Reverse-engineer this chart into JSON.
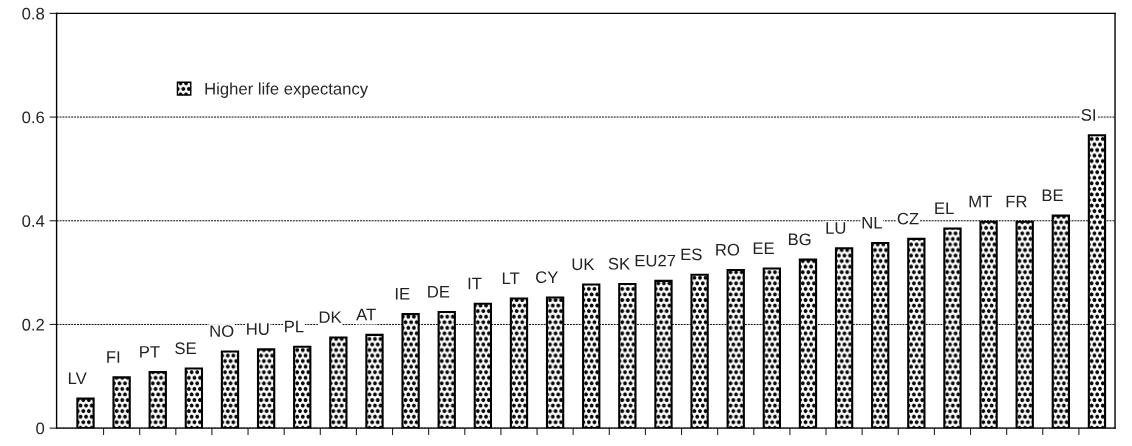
{
  "chart_data": {
    "type": "bar",
    "categories": [
      "LV",
      "FI",
      "PT",
      "SE",
      "NO",
      "HU",
      "PL",
      "DK",
      "AT",
      "IE",
      "DE",
      "IT",
      "LT",
      "CY",
      "UK",
      "SK",
      "EU27",
      "ES",
      "RO",
      "EE",
      "BG",
      "LU",
      "NL",
      "CZ",
      "EL",
      "MT",
      "FR",
      "BE",
      "SI"
    ],
    "series": [
      {
        "name": "Higher life expectancy",
        "color": "#000000",
        "values": [
          0.057,
          0.098,
          0.108,
          0.115,
          0.148,
          0.152,
          0.157,
          0.175,
          0.18,
          0.22,
          0.224,
          0.24,
          0.25,
          0.252,
          0.277,
          0.278,
          0.284,
          0.296,
          0.305,
          0.308,
          0.325,
          0.347,
          0.357,
          0.365,
          0.385,
          0.398,
          0.398,
          0.41,
          0.565
        ]
      }
    ],
    "ylim": [
      0,
      0.8
    ],
    "yticks": [
      0,
      0.2,
      0.4,
      0.6,
      0.8
    ],
    "grid": "y",
    "legend": "top left",
    "tick_labels": "y"
  }
}
